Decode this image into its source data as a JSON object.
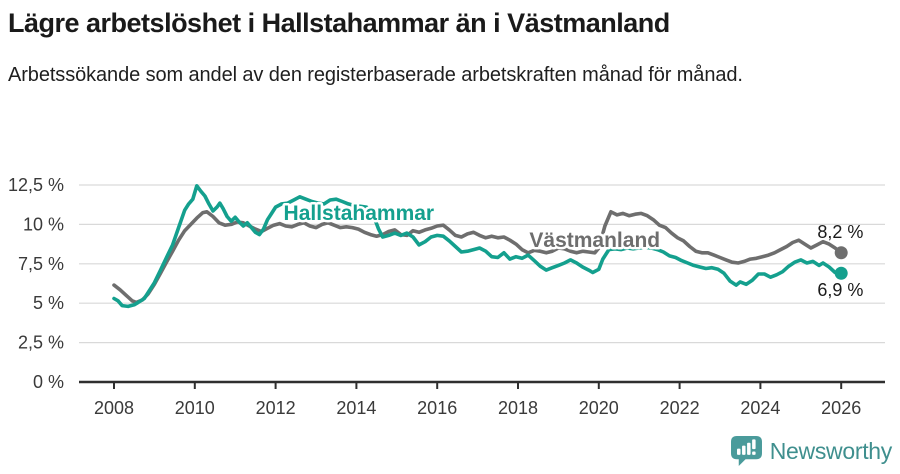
{
  "header": {
    "title": "Lägre arbetslöshet i Hallstahammar än i Västmanland",
    "subtitle": "Arbetssökande som andel av den registerbaserade arbetskraften månad för månad."
  },
  "footer": {
    "brand": "Newsworthy",
    "logo_icon": "bar-chart-speech-bubble-icon",
    "brand_icon_color": "#4a9b9b",
    "brand_text_color": "#3f8f8e"
  },
  "colors": {
    "hallstahammar": "#14a08e",
    "vastmanland": "#6e6e6e",
    "grid": "#d9d9d9",
    "axis": "#2f2f2f",
    "tick_text": "#3a3a3a",
    "end_label_text": "#1a1a1a",
    "label_halo": "#ffffff"
  },
  "chart_data": {
    "type": "line",
    "x_unit": "decimal_year",
    "xlim": [
      2007.6,
      2026.6
    ],
    "ylim": [
      0,
      13.2
    ],
    "grid": "horizontal",
    "y_ticks": {
      "values": [
        0,
        2.5,
        5,
        7.5,
        10,
        12.5
      ],
      "labels": [
        "0 %",
        "2,5 %",
        "5 %",
        "7,5 %",
        "10 %",
        "12,5 %"
      ]
    },
    "x_ticks": {
      "values": [
        2008,
        2010,
        2012,
        2014,
        2016,
        2018,
        2020,
        2022,
        2024,
        2026
      ],
      "labels": [
        "2008",
        "2010",
        "2012",
        "2014",
        "2016",
        "2018",
        "2020",
        "2022",
        "2024",
        "2026"
      ]
    },
    "series": [
      {
        "name": "Västmanland",
        "color": "#6e6e6e",
        "end_label": "8,2 %",
        "end_value": 8.2,
        "inline_label": {
          "x": 2019.9,
          "y": 8.57
        },
        "end_label_anchor": {
          "x": 2026.55,
          "y": 9.14
        },
        "points": [
          [
            2008.0,
            6.15
          ],
          [
            2008.15,
            5.85
          ],
          [
            2008.3,
            5.5
          ],
          [
            2008.45,
            5.15
          ],
          [
            2008.55,
            5.05
          ],
          [
            2008.7,
            5.2
          ],
          [
            2008.85,
            5.6
          ],
          [
            2009.0,
            6.2
          ],
          [
            2009.15,
            6.9
          ],
          [
            2009.3,
            7.6
          ],
          [
            2009.45,
            8.3
          ],
          [
            2009.6,
            9.0
          ],
          [
            2009.75,
            9.6
          ],
          [
            2009.9,
            10.0
          ],
          [
            2010.05,
            10.4
          ],
          [
            2010.2,
            10.75
          ],
          [
            2010.3,
            10.8
          ],
          [
            2010.45,
            10.5
          ],
          [
            2010.6,
            10.1
          ],
          [
            2010.75,
            9.95
          ],
          [
            2010.9,
            10.0
          ],
          [
            2011.05,
            10.15
          ],
          [
            2011.2,
            10.1
          ],
          [
            2011.35,
            9.9
          ],
          [
            2011.5,
            9.7
          ],
          [
            2011.65,
            9.55
          ],
          [
            2011.8,
            9.75
          ],
          [
            2011.95,
            9.95
          ],
          [
            2012.1,
            10.05
          ],
          [
            2012.25,
            9.9
          ],
          [
            2012.4,
            9.85
          ],
          [
            2012.55,
            10.0
          ],
          [
            2012.7,
            10.1
          ],
          [
            2012.85,
            9.9
          ],
          [
            2013.0,
            9.8
          ],
          [
            2013.15,
            10.0
          ],
          [
            2013.3,
            10.1
          ],
          [
            2013.45,
            9.95
          ],
          [
            2013.6,
            9.8
          ],
          [
            2013.75,
            9.85
          ],
          [
            2013.9,
            9.8
          ],
          [
            2014.05,
            9.7
          ],
          [
            2014.2,
            9.5
          ],
          [
            2014.35,
            9.35
          ],
          [
            2014.5,
            9.25
          ],
          [
            2014.65,
            9.35
          ],
          [
            2014.8,
            9.55
          ],
          [
            2014.95,
            9.65
          ],
          [
            2015.1,
            9.35
          ],
          [
            2015.25,
            9.3
          ],
          [
            2015.4,
            9.6
          ],
          [
            2015.55,
            9.5
          ],
          [
            2015.7,
            9.65
          ],
          [
            2015.85,
            9.75
          ],
          [
            2016.0,
            9.9
          ],
          [
            2016.15,
            9.95
          ],
          [
            2016.3,
            9.65
          ],
          [
            2016.45,
            9.3
          ],
          [
            2016.6,
            9.2
          ],
          [
            2016.75,
            9.4
          ],
          [
            2016.9,
            9.5
          ],
          [
            2017.05,
            9.3
          ],
          [
            2017.2,
            9.15
          ],
          [
            2017.35,
            9.25
          ],
          [
            2017.5,
            9.15
          ],
          [
            2017.65,
            9.2
          ],
          [
            2017.8,
            9.0
          ],
          [
            2017.95,
            8.75
          ],
          [
            2018.1,
            8.4
          ],
          [
            2018.25,
            8.2
          ],
          [
            2018.4,
            8.35
          ],
          [
            2018.55,
            8.3
          ],
          [
            2018.7,
            8.2
          ],
          [
            2018.85,
            8.3
          ],
          [
            2019.0,
            8.5
          ],
          [
            2019.15,
            8.45
          ],
          [
            2019.3,
            8.3
          ],
          [
            2019.45,
            8.2
          ],
          [
            2019.6,
            8.3
          ],
          [
            2019.75,
            8.25
          ],
          [
            2019.9,
            8.2
          ],
          [
            2020.0,
            8.5
          ],
          [
            2020.15,
            9.9
          ],
          [
            2020.3,
            10.8
          ],
          [
            2020.45,
            10.6
          ],
          [
            2020.6,
            10.7
          ],
          [
            2020.75,
            10.55
          ],
          [
            2020.9,
            10.65
          ],
          [
            2021.05,
            10.7
          ],
          [
            2021.2,
            10.55
          ],
          [
            2021.35,
            10.3
          ],
          [
            2021.5,
            9.95
          ],
          [
            2021.65,
            9.8
          ],
          [
            2021.8,
            9.45
          ],
          [
            2021.95,
            9.15
          ],
          [
            2022.1,
            8.95
          ],
          [
            2022.25,
            8.6
          ],
          [
            2022.4,
            8.3
          ],
          [
            2022.55,
            8.2
          ],
          [
            2022.7,
            8.2
          ],
          [
            2022.85,
            8.05
          ],
          [
            2023.0,
            7.9
          ],
          [
            2023.15,
            7.75
          ],
          [
            2023.3,
            7.6
          ],
          [
            2023.45,
            7.55
          ],
          [
            2023.6,
            7.65
          ],
          [
            2023.75,
            7.8
          ],
          [
            2023.9,
            7.85
          ],
          [
            2024.05,
            7.95
          ],
          [
            2024.2,
            8.05
          ],
          [
            2024.35,
            8.2
          ],
          [
            2024.5,
            8.4
          ],
          [
            2024.65,
            8.6
          ],
          [
            2024.8,
            8.85
          ],
          [
            2024.95,
            9.0
          ],
          [
            2025.1,
            8.75
          ],
          [
            2025.25,
            8.5
          ],
          [
            2025.4,
            8.7
          ],
          [
            2025.55,
            8.9
          ],
          [
            2025.7,
            8.75
          ],
          [
            2025.85,
            8.5
          ],
          [
            2026.0,
            8.2
          ]
        ]
      },
      {
        "name": "Hallstahammar",
        "color": "#14a08e",
        "end_label": "6,9 %",
        "end_value": 6.9,
        "inline_label": {
          "x": 2014.06,
          "y": 10.28
        },
        "end_label_anchor": {
          "x": 2026.55,
          "y": 5.46
        },
        "points": [
          [
            2008.0,
            5.3
          ],
          [
            2008.1,
            5.15
          ],
          [
            2008.2,
            4.85
          ],
          [
            2008.35,
            4.8
          ],
          [
            2008.5,
            4.9
          ],
          [
            2008.6,
            5.05
          ],
          [
            2008.75,
            5.3
          ],
          [
            2008.9,
            5.9
          ],
          [
            2009.0,
            6.3
          ],
          [
            2009.15,
            7.1
          ],
          [
            2009.3,
            7.9
          ],
          [
            2009.45,
            8.7
          ],
          [
            2009.6,
            9.8
          ],
          [
            2009.75,
            10.9
          ],
          [
            2009.85,
            11.3
          ],
          [
            2009.95,
            11.6
          ],
          [
            2010.05,
            12.45
          ],
          [
            2010.15,
            12.1
          ],
          [
            2010.25,
            11.8
          ],
          [
            2010.35,
            11.3
          ],
          [
            2010.45,
            10.85
          ],
          [
            2010.55,
            11.1
          ],
          [
            2010.62,
            11.35
          ],
          [
            2010.7,
            11.0
          ],
          [
            2010.8,
            10.5
          ],
          [
            2010.9,
            10.2
          ],
          [
            2011.0,
            10.45
          ],
          [
            2011.1,
            10.15
          ],
          [
            2011.2,
            9.9
          ],
          [
            2011.3,
            10.1
          ],
          [
            2011.4,
            9.8
          ],
          [
            2011.5,
            9.5
          ],
          [
            2011.6,
            9.35
          ],
          [
            2011.7,
            9.7
          ],
          [
            2011.8,
            10.3
          ],
          [
            2011.9,
            10.7
          ],
          [
            2012.0,
            11.1
          ],
          [
            2012.15,
            11.3
          ],
          [
            2012.3,
            11.35
          ],
          [
            2012.45,
            11.55
          ],
          [
            2012.6,
            11.75
          ],
          [
            2012.75,
            11.6
          ],
          [
            2012.9,
            11.45
          ],
          [
            2013.05,
            11.35
          ],
          [
            2013.2,
            11.3
          ],
          [
            2013.35,
            11.55
          ],
          [
            2013.5,
            11.6
          ],
          [
            2013.65,
            11.45
          ],
          [
            2013.8,
            11.3
          ],
          [
            2013.95,
            11.2
          ],
          [
            2014.1,
            11.15
          ],
          [
            2014.25,
            11.1
          ],
          [
            2014.4,
            10.7
          ],
          [
            2014.55,
            9.7
          ],
          [
            2014.65,
            9.2
          ],
          [
            2014.8,
            9.3
          ],
          [
            2014.95,
            9.45
          ],
          [
            2015.1,
            9.3
          ],
          [
            2015.25,
            9.45
          ],
          [
            2015.4,
            9.2
          ],
          [
            2015.55,
            8.7
          ],
          [
            2015.7,
            8.9
          ],
          [
            2015.85,
            9.2
          ],
          [
            2016.0,
            9.3
          ],
          [
            2016.15,
            9.25
          ],
          [
            2016.3,
            8.95
          ],
          [
            2016.45,
            8.6
          ],
          [
            2016.6,
            8.25
          ],
          [
            2016.75,
            8.3
          ],
          [
            2016.9,
            8.4
          ],
          [
            2017.05,
            8.5
          ],
          [
            2017.2,
            8.3
          ],
          [
            2017.35,
            7.95
          ],
          [
            2017.5,
            7.9
          ],
          [
            2017.65,
            8.2
          ],
          [
            2017.8,
            7.8
          ],
          [
            2017.95,
            7.95
          ],
          [
            2018.1,
            7.85
          ],
          [
            2018.25,
            8.05
          ],
          [
            2018.4,
            7.7
          ],
          [
            2018.55,
            7.35
          ],
          [
            2018.7,
            7.1
          ],
          [
            2018.85,
            7.25
          ],
          [
            2019.0,
            7.4
          ],
          [
            2019.15,
            7.55
          ],
          [
            2019.3,
            7.75
          ],
          [
            2019.45,
            7.55
          ],
          [
            2019.6,
            7.3
          ],
          [
            2019.75,
            7.1
          ],
          [
            2019.85,
            6.95
          ],
          [
            2020.0,
            7.15
          ],
          [
            2020.1,
            7.8
          ],
          [
            2020.25,
            8.4
          ],
          [
            2020.4,
            8.45
          ],
          [
            2020.55,
            8.4
          ],
          [
            2020.7,
            8.5
          ],
          [
            2020.85,
            8.45
          ],
          [
            2021.0,
            8.5
          ],
          [
            2021.15,
            8.55
          ],
          [
            2021.3,
            8.5
          ],
          [
            2021.45,
            8.4
          ],
          [
            2021.6,
            8.25
          ],
          [
            2021.75,
            8.0
          ],
          [
            2021.9,
            7.9
          ],
          [
            2022.05,
            7.7
          ],
          [
            2022.2,
            7.55
          ],
          [
            2022.35,
            7.4
          ],
          [
            2022.5,
            7.3
          ],
          [
            2022.65,
            7.2
          ],
          [
            2022.8,
            7.25
          ],
          [
            2022.95,
            7.15
          ],
          [
            2023.1,
            6.9
          ],
          [
            2023.25,
            6.4
          ],
          [
            2023.4,
            6.15
          ],
          [
            2023.5,
            6.35
          ],
          [
            2023.65,
            6.2
          ],
          [
            2023.8,
            6.45
          ],
          [
            2023.95,
            6.85
          ],
          [
            2024.1,
            6.85
          ],
          [
            2024.25,
            6.65
          ],
          [
            2024.4,
            6.8
          ],
          [
            2024.55,
            7.0
          ],
          [
            2024.7,
            7.35
          ],
          [
            2024.85,
            7.6
          ],
          [
            2025.0,
            7.75
          ],
          [
            2025.15,
            7.55
          ],
          [
            2025.3,
            7.65
          ],
          [
            2025.45,
            7.4
          ],
          [
            2025.55,
            7.55
          ],
          [
            2025.7,
            7.3
          ],
          [
            2025.85,
            6.95
          ],
          [
            2026.0,
            6.9
          ]
        ]
      }
    ]
  }
}
